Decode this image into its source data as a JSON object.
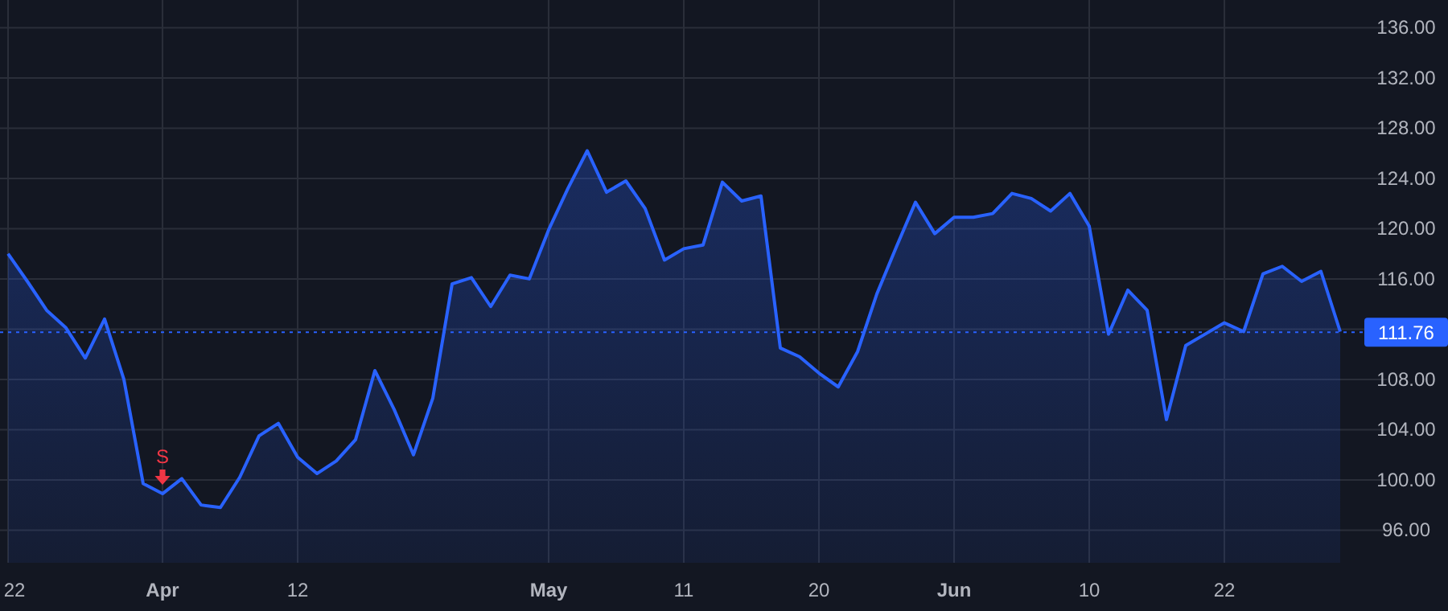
{
  "chart_data": {
    "type": "area",
    "categories": [
      "22",
      null,
      null,
      null,
      null,
      null,
      null,
      null,
      "Apr",
      null,
      null,
      null,
      null,
      null,
      null,
      "12",
      null,
      null,
      null,
      null,
      null,
      null,
      null,
      null,
      null,
      null,
      null,
      null,
      "May",
      null,
      null,
      null,
      null,
      null,
      null,
      "11",
      null,
      null,
      null,
      null,
      null,
      null,
      "20",
      null,
      null,
      null,
      null,
      null,
      null,
      "Jun",
      null,
      null,
      null,
      null,
      null,
      null,
      "10",
      null,
      null,
      null,
      null,
      null,
      null,
      "22",
      null,
      null,
      null,
      null,
      null,
      null
    ],
    "series": [
      {
        "color": "#2962ff",
        "values": [
          118.0,
          115.8,
          113.5,
          112.1,
          109.7,
          112.8,
          108.0,
          99.7,
          98.9,
          100.1,
          98.0,
          97.8,
          100.2,
          103.5,
          104.5,
          101.8,
          100.5,
          101.5,
          103.2,
          108.7,
          105.6,
          102.0,
          106.5,
          115.6,
          116.1,
          113.8,
          116.3,
          116.0,
          119.9,
          123.2,
          126.2,
          122.9,
          123.8,
          121.6,
          117.5,
          118.4,
          118.7,
          123.7,
          122.2,
          122.6,
          110.5,
          109.8,
          108.5,
          107.4,
          110.2,
          114.8,
          118.5,
          122.1,
          119.6,
          120.9,
          120.9,
          121.2,
          122.8,
          122.4,
          121.4,
          122.8,
          120.2,
          111.6,
          115.1,
          113.5,
          104.8,
          110.7,
          111.6,
          112.5,
          111.8,
          116.4,
          117.0,
          115.8,
          116.6,
          111.8
        ]
      }
    ],
    "ylim": [
      93.4,
      138.2
    ],
    "yticks": [
      {
        "value": 96,
        "label": "96.00"
      },
      {
        "value": 100,
        "label": "100.00"
      },
      {
        "value": 104,
        "label": "104.00"
      },
      {
        "value": 108,
        "label": "108.00"
      },
      {
        "value": 112,
        "label": null
      },
      {
        "value": 116,
        "label": "116.00"
      },
      {
        "value": 120,
        "label": "120.00"
      },
      {
        "value": 124,
        "label": "124.00"
      },
      {
        "value": 128,
        "label": "128.00"
      },
      {
        "value": 132,
        "label": "132.00"
      },
      {
        "value": 136,
        "label": "136.00"
      }
    ],
    "grid": true,
    "ref_lines": [
      {
        "axis": "y",
        "value": 111.76,
        "label": "111.76",
        "color": "#2962ff",
        "line_style": "dotted"
      }
    ],
    "annotations": [
      {
        "text": "S",
        "x": "Apr",
        "y": 98.9
      }
    ]
  }
}
